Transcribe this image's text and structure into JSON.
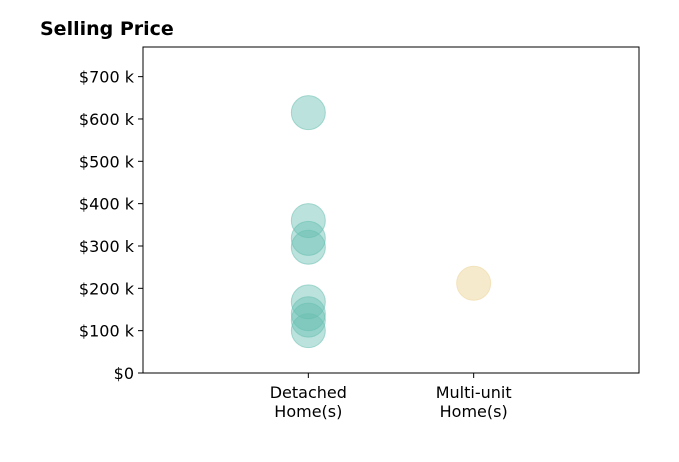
{
  "chart_data": {
    "type": "scatter",
    "title": "Selling Price",
    "xlabel": "",
    "ylabel": "",
    "categories": [
      [
        "Detached",
        "Home(s)"
      ],
      [
        "Multi-unit",
        "Home(s)"
      ]
    ],
    "y_ticks": [
      {
        "value": 0,
        "label": "$0"
      },
      {
        "value": 100000,
        "label": "$100 k"
      },
      {
        "value": 200000,
        "label": "$200 k"
      },
      {
        "value": 300000,
        "label": "$300 k"
      },
      {
        "value": 400000,
        "label": "$400 k"
      },
      {
        "value": 500000,
        "label": "$500 k"
      },
      {
        "value": 600000,
        "label": "$600 k"
      },
      {
        "value": 700000,
        "label": "$700 k"
      }
    ],
    "ylim": [
      0,
      770000
    ],
    "xlim": [
      -1,
      2
    ],
    "grid": false,
    "legend": "none",
    "series": [
      {
        "color": "#69bfb2",
        "opacity": 0.45,
        "points": [
          {
            "x": 0,
            "y": 615000
          },
          {
            "x": 0,
            "y": 360000
          },
          {
            "x": 0,
            "y": 318000
          },
          {
            "x": 0,
            "y": 297000
          },
          {
            "x": 0,
            "y": 168000
          },
          {
            "x": 0,
            "y": 140000
          },
          {
            "x": 0,
            "y": 125000
          },
          {
            "x": 0,
            "y": 100000
          }
        ]
      },
      {
        "color": "#f0deb0",
        "opacity": 0.65,
        "points": [
          {
            "x": 1,
            "y": 212000
          }
        ]
      }
    ]
  }
}
